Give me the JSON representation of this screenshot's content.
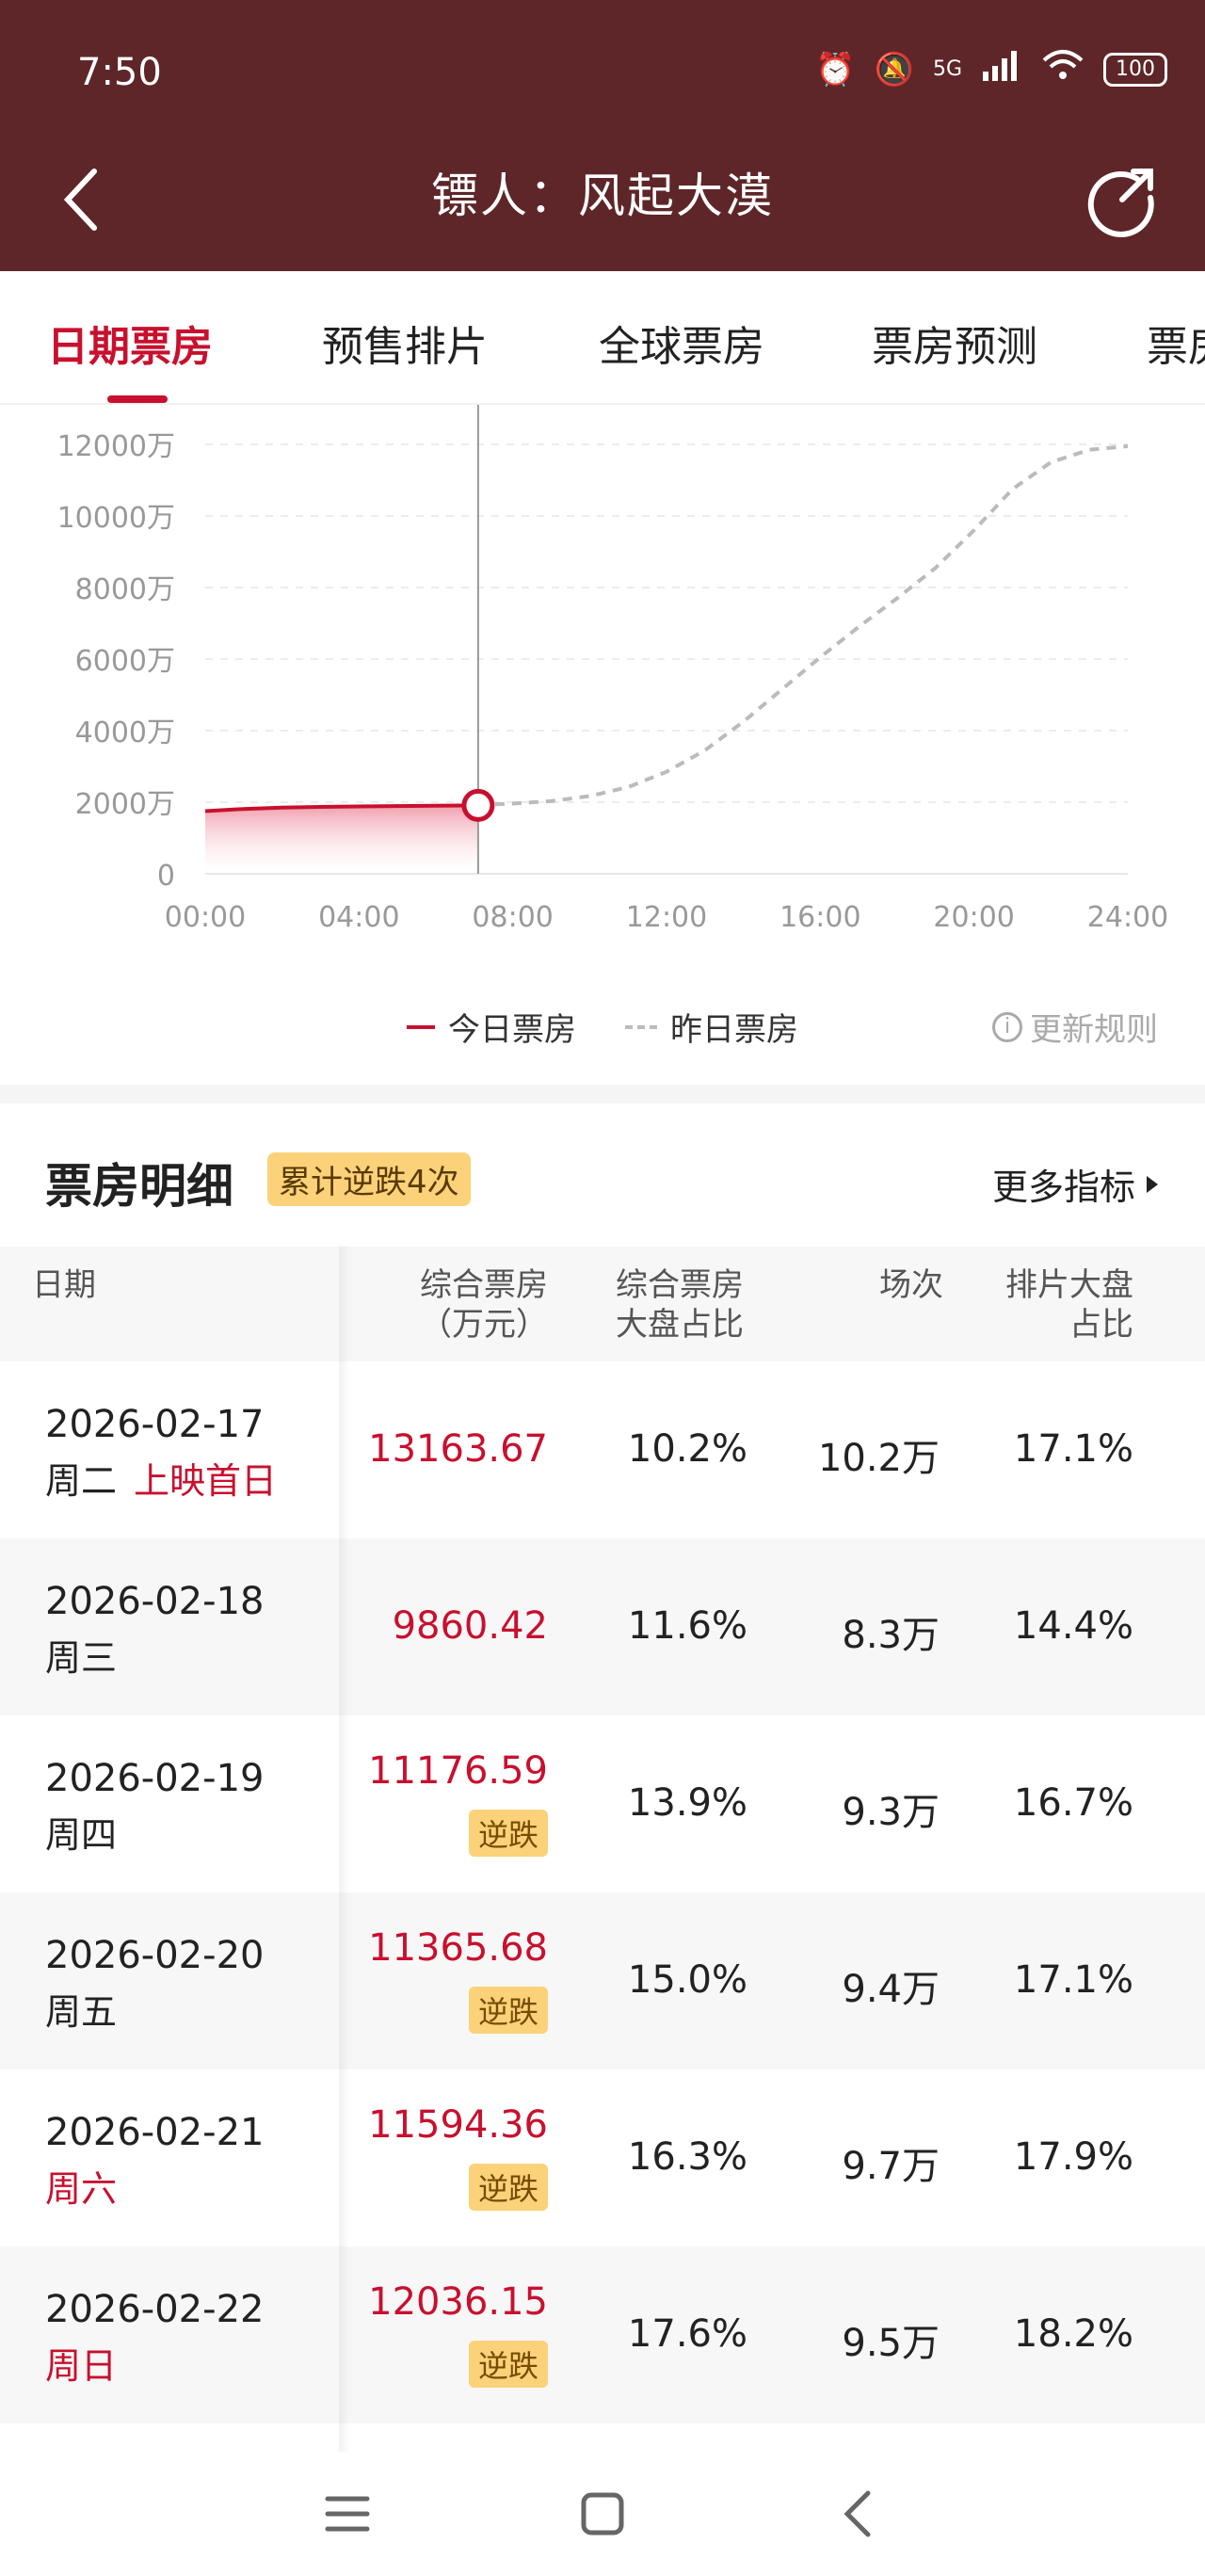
{
  "status": {
    "time": "7:50",
    "network": "5G",
    "battery": "100"
  },
  "nav": {
    "title": "镖人：风起大漠"
  },
  "tabs": [
    {
      "label": "日期票房",
      "active": true
    },
    {
      "label": "预售排片"
    },
    {
      "label": "全球票房"
    },
    {
      "label": "票房预测"
    },
    {
      "label": "票房"
    }
  ],
  "chart_data": {
    "type": "line",
    "y_ticks": [
      "12000万",
      "10000万",
      "8000万",
      "6000万",
      "4000万",
      "2000万",
      "0"
    ],
    "x_ticks": [
      "00:00",
      "04:00",
      "08:00",
      "12:00",
      "16:00",
      "20:00",
      "24:00"
    ],
    "ylim": [
      0,
      12000
    ],
    "xlim": [
      0,
      24
    ],
    "series": [
      {
        "name": "今日票房",
        "style": "solid-area",
        "color": "#c8102e",
        "x": [
          0,
          1,
          2,
          3,
          4,
          5,
          6,
          7.1
        ],
        "y": [
          1750,
          1810,
          1850,
          1870,
          1880,
          1890,
          1900,
          1910
        ]
      },
      {
        "name": "昨日票房",
        "style": "dashed",
        "color": "#bbbbbb",
        "x": [
          7.1,
          8,
          9,
          10,
          11,
          12,
          13,
          14,
          15,
          16,
          17,
          18,
          19,
          20,
          21,
          22,
          23,
          24
        ],
        "y": [
          1920,
          1960,
          2030,
          2170,
          2420,
          2850,
          3450,
          4250,
          5150,
          6050,
          6900,
          7700,
          8550,
          9600,
          10750,
          11500,
          11850,
          11950
        ]
      }
    ],
    "cursor_x": 7.1,
    "grid": true
  },
  "legend": {
    "today": "今日票房",
    "yesterday": "昨日票房",
    "rule": "更新规则"
  },
  "section": {
    "title": "票房明细",
    "badge": "累计逆跌4次",
    "more": "更多指标"
  },
  "table": {
    "headers": {
      "date": "日期",
      "bo_1": "综合票房",
      "bo_2": "（万元）",
      "share_1": "综合票房",
      "share_2": "大盘占比",
      "shows": "场次",
      "sched_1": "排片大盘",
      "sched_2": "占比"
    },
    "rows": [
      {
        "date": "2026-02-17",
        "weekday": "周二",
        "note": "上映首日",
        "weekend": false,
        "bo": "13163.67",
        "tag": "",
        "share": "10.2%",
        "shows": "10.2万",
        "sched": "17.1%"
      },
      {
        "date": "2026-02-18",
        "weekday": "周三",
        "note": "",
        "weekend": false,
        "bo": "9860.42",
        "tag": "",
        "share": "11.6%",
        "shows": "8.3万",
        "sched": "14.4%"
      },
      {
        "date": "2026-02-19",
        "weekday": "周四",
        "note": "",
        "weekend": false,
        "bo": "11176.59",
        "tag": "逆跌",
        "share": "13.9%",
        "shows": "9.3万",
        "sched": "16.7%"
      },
      {
        "date": "2026-02-20",
        "weekday": "周五",
        "note": "",
        "weekend": false,
        "bo": "11365.68",
        "tag": "逆跌",
        "share": "15.0%",
        "shows": "9.4万",
        "sched": "17.1%"
      },
      {
        "date": "2026-02-21",
        "weekday": "周六",
        "note": "",
        "weekend": true,
        "bo": "11594.36",
        "tag": "逆跌",
        "share": "16.3%",
        "shows": "9.7万",
        "sched": "17.9%"
      },
      {
        "date": "2026-02-22",
        "weekday": "周日",
        "note": "",
        "weekend": true,
        "bo": "12036.15",
        "tag": "逆跌",
        "share": "17.6%",
        "shows": "9.5万",
        "sched": "18.2%"
      }
    ]
  }
}
